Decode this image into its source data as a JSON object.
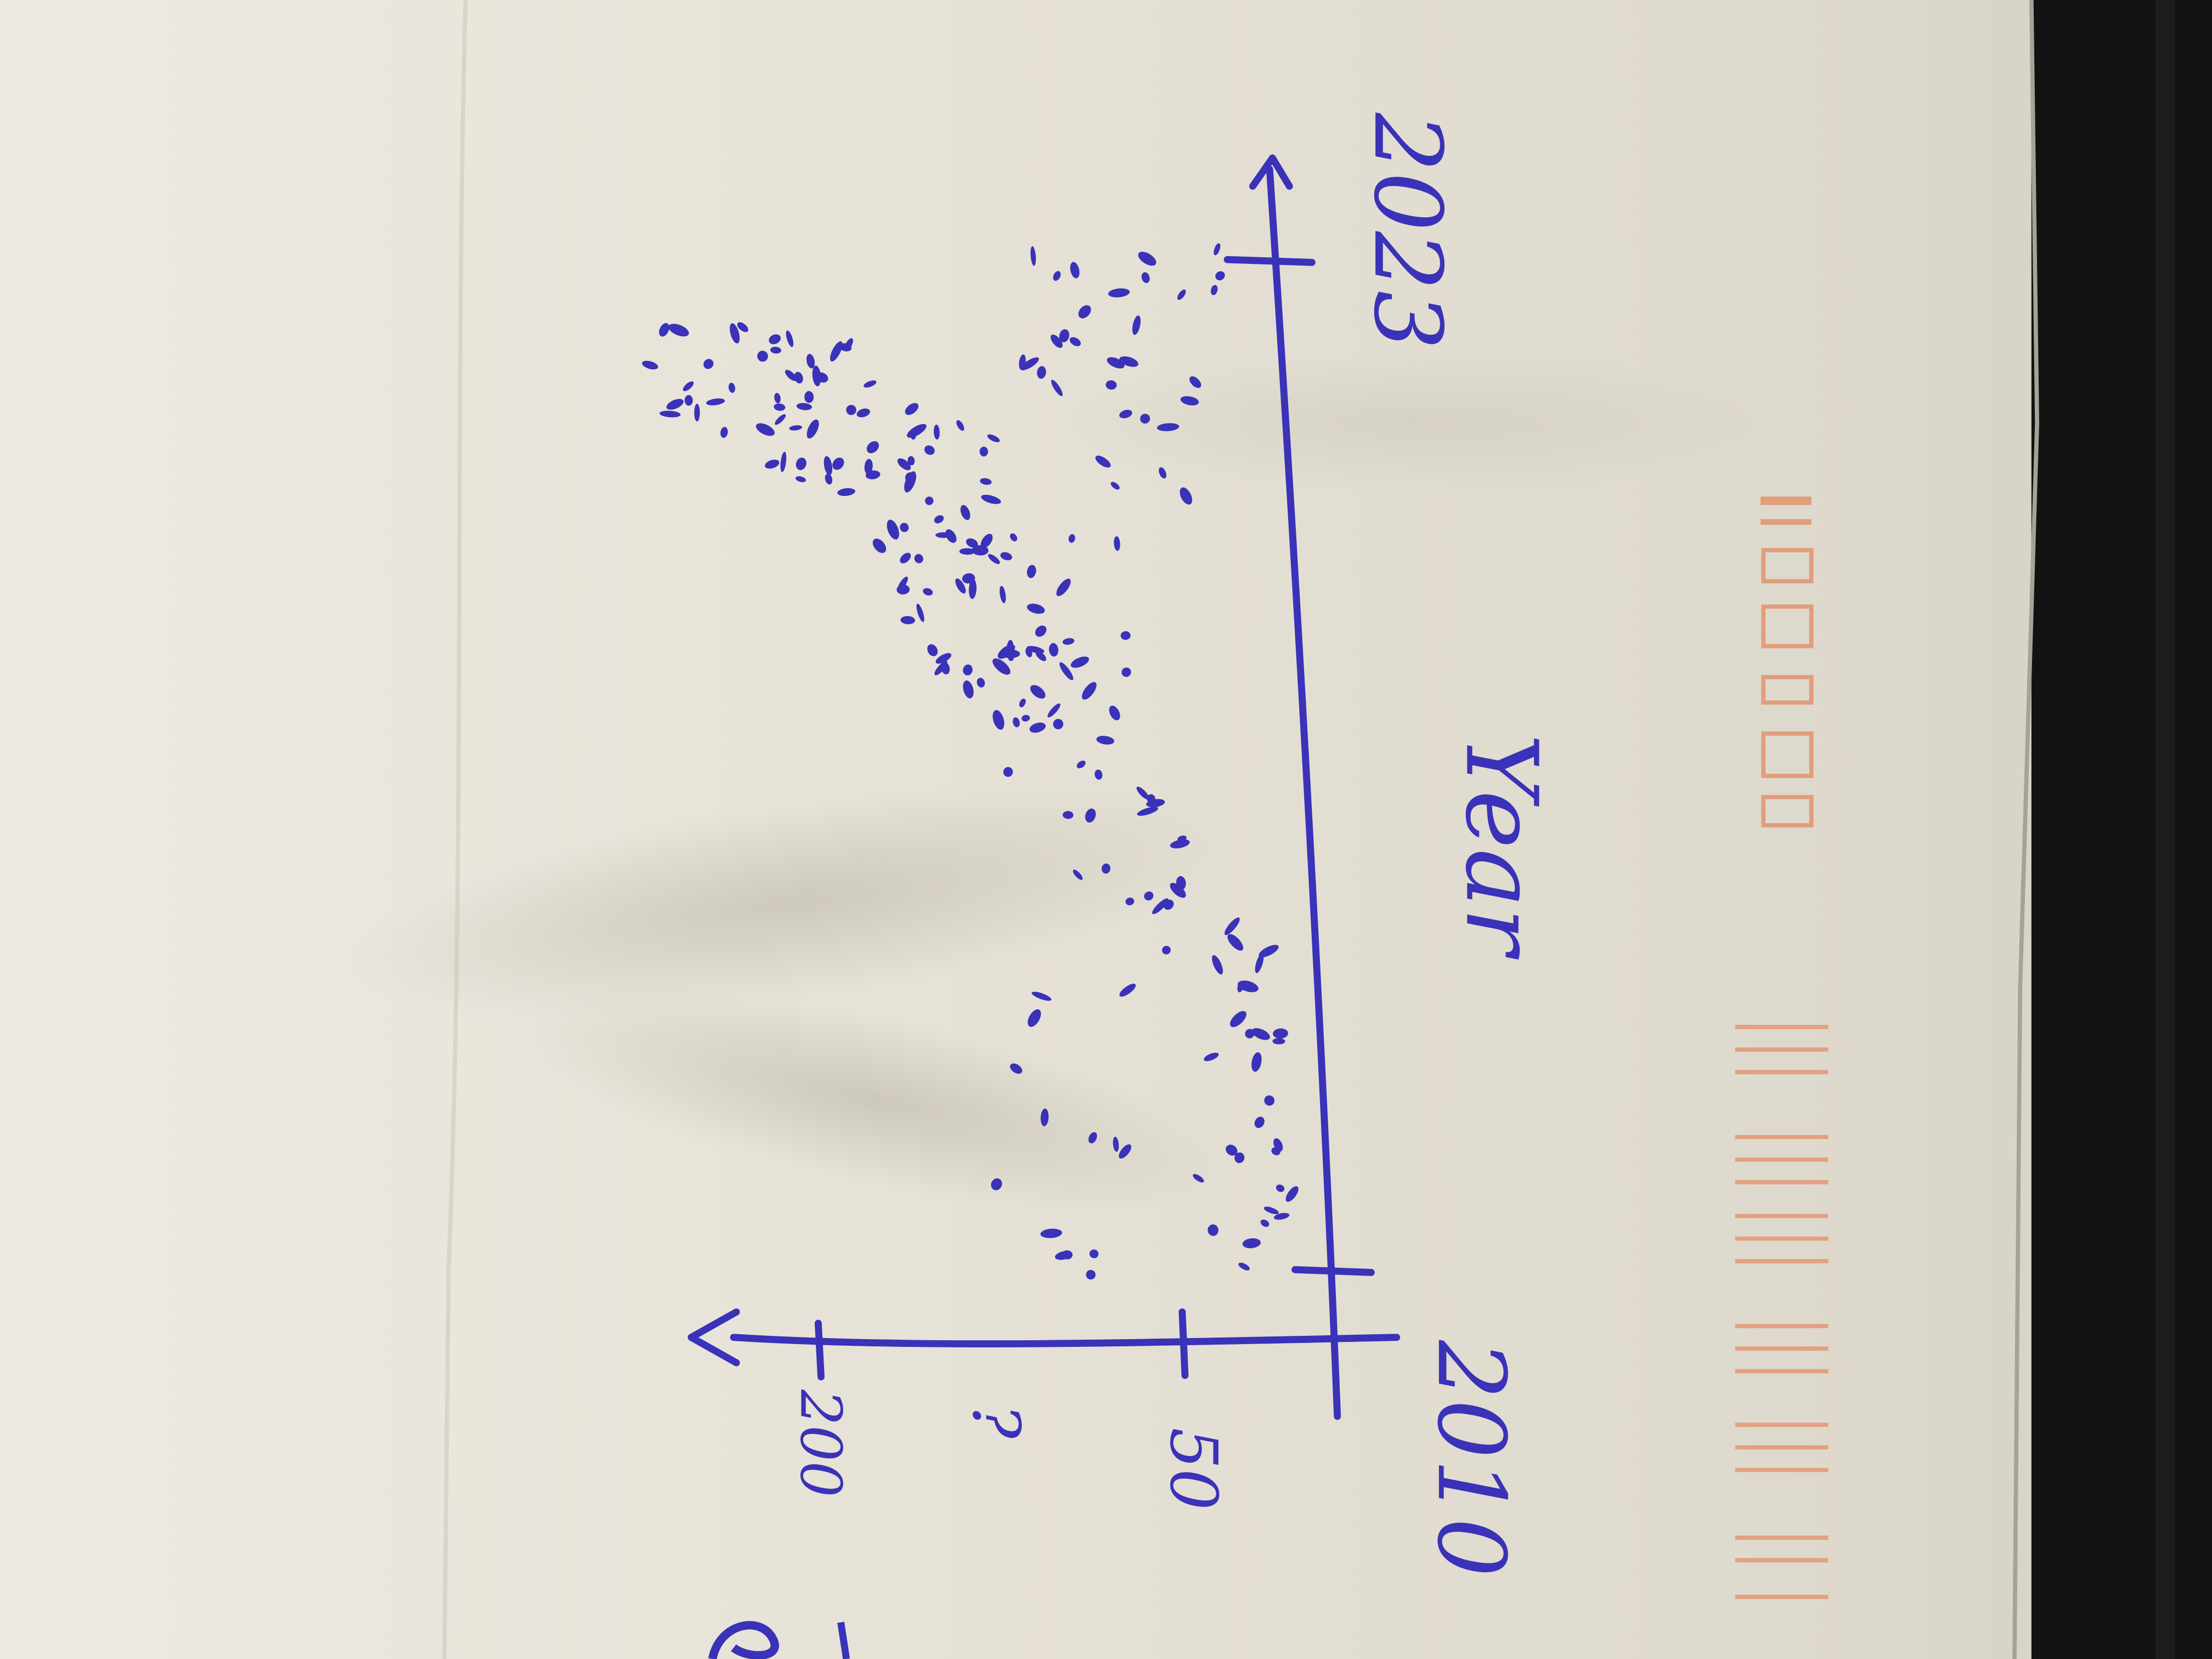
{
  "photo": {
    "subject": "hand-drawn scatter plot sketch on paper, photographed rotated",
    "ink_color": "#3a32b8",
    "paper_color": "#ece8df",
    "frame_color": "#121212",
    "stamp_color": "#e48f67"
  },
  "sketch": {
    "x_axis_label": "Year",
    "x_axis_ticks": [
      "2010",
      "2023"
    ],
    "y_axis_ticks": [
      "50",
      "?",
      "200"
    ]
  }
}
